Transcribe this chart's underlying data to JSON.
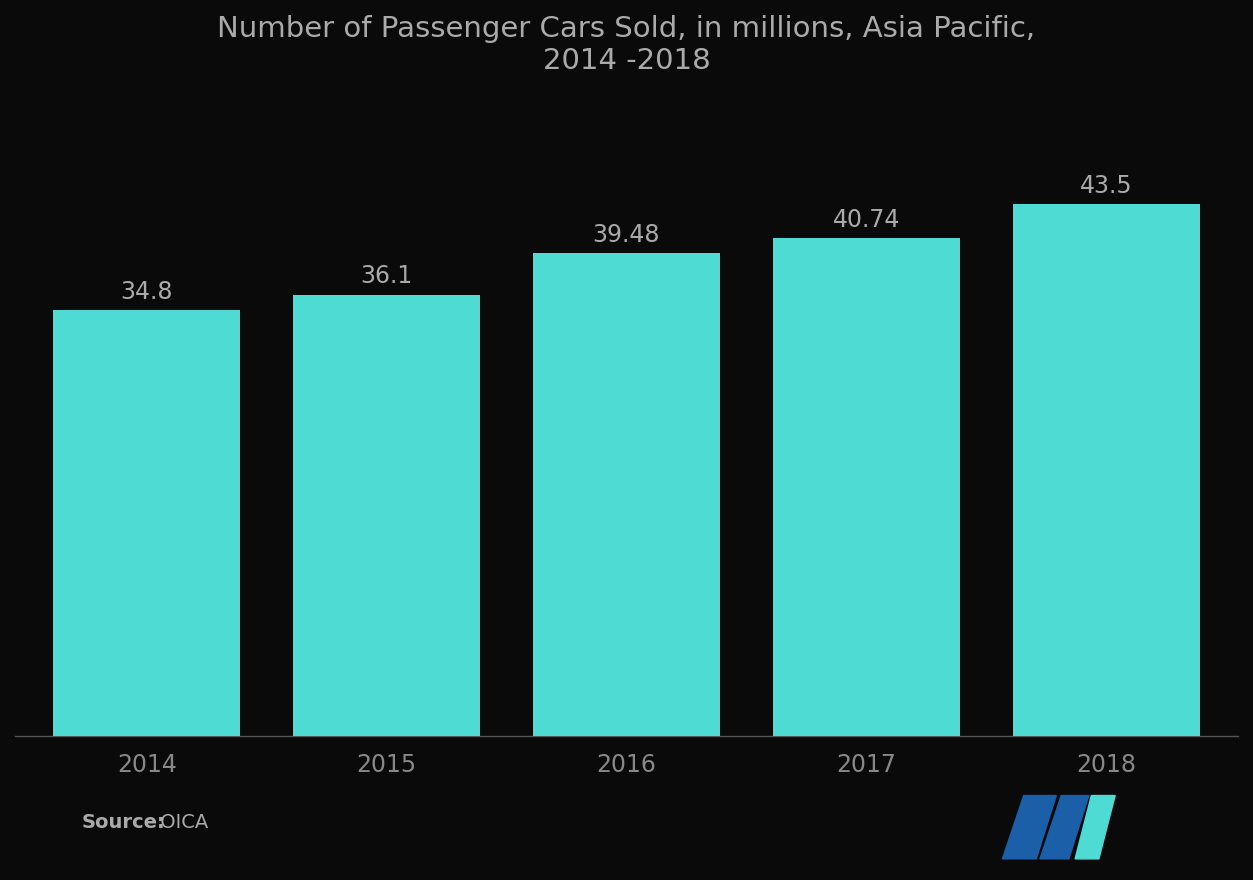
{
  "title": "Number of Passenger Cars Sold, in millions, Asia Pacific,\n2014 -2018",
  "categories": [
    "2014",
    "2015",
    "2016",
    "2017",
    "2018"
  ],
  "values": [
    34.8,
    36.1,
    39.48,
    40.74,
    43.5
  ],
  "bar_color": "#4DDBD4",
  "background_color": "#0a0a0a",
  "text_color": "#aaaaaa",
  "title_color": "#aaaaaa",
  "label_color": "#888888",
  "source_bold": "Source:",
  "source_normal": " OICA",
  "ylim": [
    0,
    52
  ],
  "bar_width": 0.78,
  "title_fontsize": 21,
  "tick_fontsize": 17,
  "value_fontsize": 17,
  "source_fontsize": 14,
  "logo_dark_blue": "#1a5fa8",
  "logo_teal": "#4DDBD4"
}
